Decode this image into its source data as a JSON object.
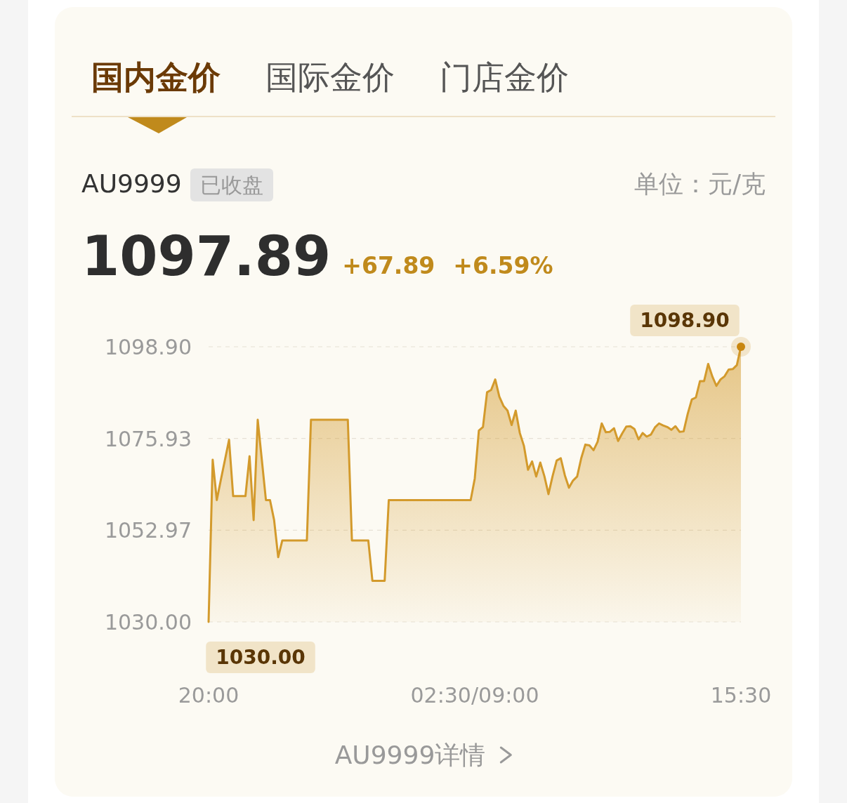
{
  "chart_data": {
    "type": "area",
    "annotations": [
      "国内金价",
      "国际金价",
      "门店金价",
      "AU9999",
      "已收盘",
      "单位：元/克",
      "1097.89",
      "+67.89",
      "+6.59%",
      {
        "text": "1098.90",
        "x": "15:30",
        "y": 1098.9
      },
      {
        "text": "1030.00",
        "x": "20:00",
        "y": 1030
      },
      "AU9999详情"
    ],
    "categories": [
      "20:00",
      null,
      null,
      null,
      null,
      null,
      null,
      null,
      null,
      null,
      null,
      null,
      null,
      null,
      null,
      null,
      null,
      null,
      null,
      null,
      null,
      null,
      null,
      null,
      null,
      null,
      null,
      null,
      null,
      null,
      null,
      null,
      null,
      null,
      null,
      null,
      null,
      null,
      null,
      null,
      null,
      null,
      null,
      null,
      null,
      null,
      null,
      null,
      null,
      null,
      null,
      null,
      null,
      null,
      null,
      null,
      null,
      null,
      null,
      null,
      null,
      null,
      null,
      null,
      null,
      "02:30/09:00",
      null,
      null,
      null,
      null,
      null,
      null,
      null,
      null,
      null,
      null,
      null,
      null,
      null,
      null,
      null,
      null,
      null,
      null,
      null,
      null,
      null,
      null,
      null,
      null,
      null,
      null,
      null,
      null,
      null,
      null,
      null,
      null,
      null,
      null,
      null,
      null,
      null,
      null,
      null,
      null,
      null,
      null,
      null,
      null,
      null,
      null,
      null,
      null,
      null,
      null,
      null,
      null,
      null,
      null,
      null,
      null,
      null,
      null,
      null,
      null,
      null,
      null,
      null,
      null,
      "15:30"
    ],
    "ylim": [
      1030,
      1098.9
    ],
    "yticks": [
      {
        "value": 1030,
        "label": "1030.00"
      },
      {
        "value": 1052.97,
        "label": "1052.97"
      },
      {
        "value": 1075.93,
        "label": "1075.93"
      },
      {
        "value": 1098.9,
        "label": "1098.90"
      }
    ],
    "grid": "y",
    "series": [
      {
        "color": "#d39a2c",
        "values": [
          1030,
          1070.6,
          1060.5,
          1065.6,
          1070.6,
          1075.6,
          1061.5,
          1061.5,
          1061.5,
          1061.5,
          1071.5,
          1055.5,
          1080.6,
          1070.6,
          1060.5,
          1060.5,
          1055.5,
          1046.2,
          1050.4,
          1050.4,
          1050.4,
          1050.4,
          1050.4,
          1050.4,
          1050.4,
          1080.6,
          1080.6,
          1080.6,
          1080.6,
          1080.6,
          1080.6,
          1080.6,
          1080.6,
          1080.6,
          1080.6,
          1050.4,
          1050.4,
          1050.4,
          1050.4,
          1050.4,
          1040.3,
          1040.3,
          1040.3,
          1040.3,
          1060.5,
          1060.5,
          1060.5,
          1060.5,
          1060.5,
          1060.5,
          1060.5,
          1060.5,
          1060.5,
          1060.5,
          1060.5,
          1060.5,
          1060.5,
          1060.5,
          1060.5,
          1060.5,
          1060.5,
          1060.5,
          1060.5,
          1060.5,
          1060.5,
          1065.9,
          1077.9,
          1078.8,
          1087.5,
          1088.1,
          1090.7,
          1086.4,
          1084.1,
          1082.9,
          1079.3,
          1082.9,
          1077.3,
          1074.1,
          1068.1,
          1070.2,
          1066.4,
          1069.9,
          1066.5,
          1062.0,
          1066.5,
          1070.4,
          1071.0,
          1066.7,
          1063.6,
          1065.4,
          1066.4,
          1071.0,
          1074.4,
          1074.2,
          1073.0,
          1075.1,
          1079.7,
          1077.5,
          1077.6,
          1078.5,
          1075.3,
          1077.2,
          1078.9,
          1079.0,
          1078.3,
          1075.7,
          1077.3,
          1076.4,
          1076.9,
          1078.7,
          1079.7,
          1079.2,
          1078.8,
          1078.1,
          1079.0,
          1077.6,
          1077.7,
          1082.1,
          1085.7,
          1086.2,
          1090.3,
          1090.3,
          1094.6,
          1091.5,
          1089.1,
          1090.7,
          1091.5,
          1093.2,
          1093.3,
          1094.3,
          1098.9
        ]
      }
    ]
  }
}
